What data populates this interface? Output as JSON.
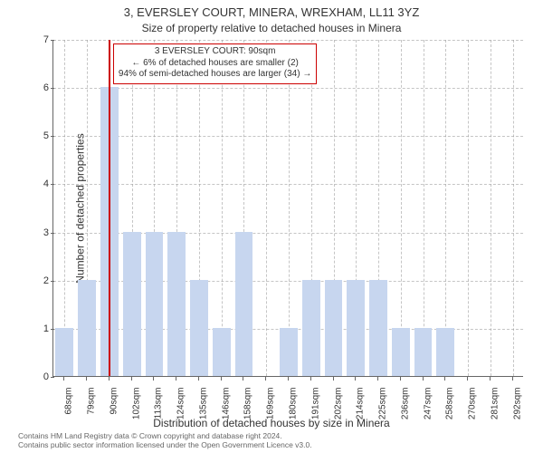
{
  "chart": {
    "type": "bar",
    "title_main": "3, EVERSLEY COURT, MINERA, WREXHAM, LL11 3YZ",
    "title_sub": "Size of property relative to detached houses in Minera",
    "xlabel": "Distribution of detached houses by size in Minera",
    "ylabel": "Number of detached properties",
    "background_color": "#ffffff",
    "grid_color": "rgba(150,150,150,0.55)",
    "axis_color": "#666666",
    "bar_color": "#c7d6ef",
    "marker_color": "#cc0000",
    "ylim": [
      0,
      7
    ],
    "ytick_step": 1,
    "yticks": [
      0,
      1,
      2,
      3,
      4,
      5,
      6,
      7
    ],
    "xticks": [
      "68sqm",
      "79sqm",
      "90sqm",
      "102sqm",
      "113sqm",
      "124sqm",
      "135sqm",
      "146sqm",
      "158sqm",
      "169sqm",
      "180sqm",
      "191sqm",
      "202sqm",
      "214sqm",
      "225sqm",
      "236sqm",
      "247sqm",
      "258sqm",
      "270sqm",
      "281sqm",
      "292sqm"
    ],
    "values": [
      1,
      2,
      6,
      3,
      3,
      3,
      2,
      1,
      3,
      0,
      1,
      2,
      2,
      2,
      2,
      1,
      1,
      1,
      0,
      0,
      0
    ],
    "marker_index": 2,
    "bar_width": 0.8,
    "tick_fontsize": 11,
    "label_fontsize": 12,
    "title_fontsize": 13
  },
  "annotation": {
    "line1": "3 EVERSLEY COURT: 90sqm",
    "line2": "← 6% of detached houses are smaller (2)",
    "line3": "94% of semi-detached houses are larger (34) →",
    "border_color": "#cc0000",
    "fontsize": 10
  },
  "attribution": {
    "line1": "Contains HM Land Registry data © Crown copyright and database right 2024.",
    "line2": "Contains public sector information licensed under the Open Government Licence v3.0."
  }
}
